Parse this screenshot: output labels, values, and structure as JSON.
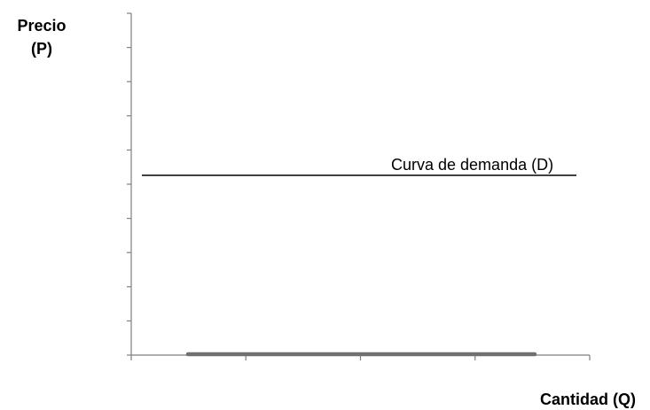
{
  "chart_data": {
    "type": "line",
    "title": "",
    "ylabel": [
      "Precio",
      "(P)"
    ],
    "xlabel": "Cantidad (Q)",
    "grid": false,
    "legend": "none",
    "series": [
      {
        "name": "Curva de demanda (D)",
        "kind": "horizontal-line",
        "color": "#000000"
      },
      {
        "kind": "thick-segment-on-x-axis",
        "color": "#707070"
      }
    ],
    "annotations": [
      {
        "text": "Curva de demanda (D)"
      }
    ]
  },
  "colors": {
    "axis": "#7f7f7f",
    "demand_line": "#000000",
    "base_segment": "#707070"
  }
}
